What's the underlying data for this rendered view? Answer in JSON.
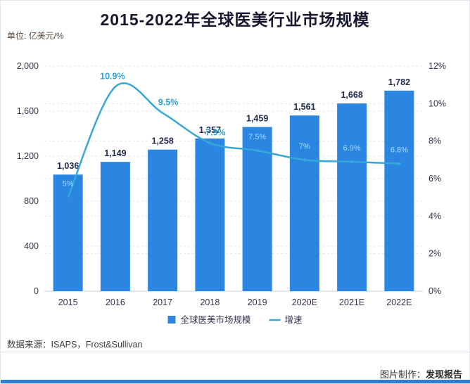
{
  "page": {
    "title": "2015-2022年全球医美行业市场规模",
    "unit_label": "单位: 亿美元/%",
    "source_label": "数据来源：ISAPS，Frost&Sullivan",
    "credit_prefix": "图片制作：",
    "credit_brand": "发现报告"
  },
  "colors": {
    "bar": "#2a86e0",
    "line": "#35a8d8",
    "bar_value_label": "#20294d",
    "growth_label_above": "#2fa3d9",
    "growth_label_inbar": "#a9ddf1",
    "axis_text": "#33334d",
    "grid": "#e4e7ee",
    "axis_line": "#c9cdd6",
    "bottom_strip": "#2b7fd9"
  },
  "chart_data": {
    "type": "bar",
    "title": "2015-2022年全球医美行业市场规模",
    "xlabel": "",
    "ylabel": "亿美元",
    "y2label": "%",
    "grid": true,
    "legend_position": "bottom",
    "categories": [
      "2015",
      "2016",
      "2017",
      "2018",
      "2019",
      "2020E",
      "2021E",
      "2022E"
    ],
    "series": [
      {
        "name": "全球医美市场规模",
        "type": "bar",
        "values": [
          1036,
          1149,
          1258,
          1357,
          1459,
          1561,
          1668,
          1782
        ],
        "labels": [
          "1,036",
          "1,149",
          "1,258",
          "1,357",
          "1,459",
          "1,561",
          "1,668",
          "1,782"
        ]
      },
      {
        "name": "增速",
        "type": "line",
        "values": [
          5.0,
          10.9,
          9.5,
          7.9,
          7.5,
          7.0,
          6.9,
          6.8
        ],
        "labels": [
          "5%",
          "10.9%",
          "9.5%",
          "7.9%",
          "7.5%",
          "7%",
          "6.9%",
          "6.8%"
        ],
        "label_placement": [
          "in-bar",
          "above",
          "above",
          "above",
          "in-bar",
          "in-bar",
          "in-bar",
          "in-bar"
        ]
      }
    ],
    "left_axis": {
      "min": 0,
      "max": 2000,
      "tick_labels": [
        "0",
        "400",
        "800",
        "1,200",
        "1,600",
        "2,000"
      ]
    },
    "right_axis": {
      "min": 0,
      "max": 12,
      "tick_labels": [
        "0%",
        "2%",
        "4%",
        "6%",
        "8%",
        "10%",
        "12%"
      ]
    }
  }
}
